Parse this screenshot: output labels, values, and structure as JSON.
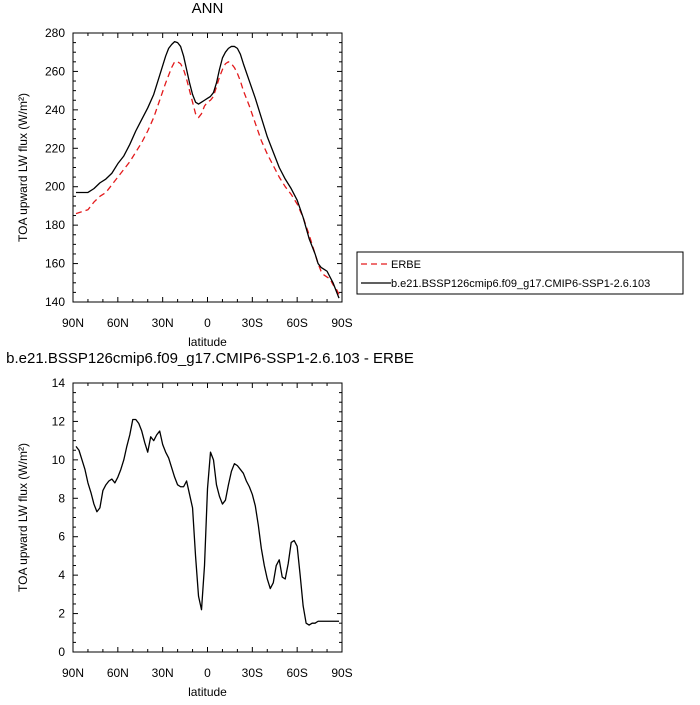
{
  "chart_data": [
    {
      "type": "line",
      "title": "ANN",
      "xlabel": "latitude",
      "ylabel": "TOA upward LW flux (W/m²)",
      "xlim": [
        90,
        -90
      ],
      "ylim": [
        140,
        280
      ],
      "xticks": [
        90,
        60,
        30,
        0,
        -30,
        -60,
        -90
      ],
      "xtick_labels": [
        "90N",
        "60N",
        "30N",
        "0",
        "30S",
        "60S",
        "90S"
      ],
      "yticks": [
        140,
        160,
        180,
        200,
        220,
        240,
        260,
        280
      ],
      "ytick_labels": [
        "140",
        "160",
        "180",
        "200",
        "220",
        "240",
        "260",
        "280"
      ],
      "legend_position": "right",
      "series": [
        {
          "name": "ERBE",
          "color": "#e31a1c",
          "dash": "dashed",
          "x": [
            88,
            84,
            80,
            76,
            72,
            68,
            64,
            60,
            56,
            52,
            48,
            44,
            40,
            36,
            32,
            28,
            26,
            24,
            22,
            20,
            18,
            16,
            14,
            12,
            10,
            8,
            6,
            4,
            2,
            0,
            -2,
            -4,
            -6,
            -8,
            -10,
            -12,
            -14,
            -16,
            -18,
            -20,
            -22,
            -24,
            -28,
            -32,
            -36,
            -40,
            -44,
            -48,
            -52,
            -56,
            -60,
            -64,
            -68,
            -72,
            -74,
            -76,
            -78,
            -80,
            -82,
            -84,
            -86,
            -88
          ],
          "y": [
            186,
            187,
            188,
            192,
            195,
            197,
            201,
            205,
            209,
            213,
            218,
            223,
            229,
            236,
            245,
            254,
            258,
            262,
            265,
            265,
            264,
            261,
            256,
            250,
            244,
            238,
            236,
            238,
            242,
            244,
            245,
            247,
            252,
            257,
            261,
            264,
            265,
            264,
            262,
            259,
            255,
            250,
            242,
            233,
            224,
            217,
            211,
            205,
            200,
            196,
            191,
            184,
            175,
            165,
            160,
            156,
            154,
            153,
            152,
            149,
            147,
            144
          ]
        },
        {
          "name": "b.e21.BSSP126cmip6.f09_g17.CMIP6-SSP1-2.6.103",
          "color": "#000000",
          "dash": "solid",
          "x": [
            88,
            84,
            80,
            76,
            72,
            68,
            64,
            60,
            56,
            52,
            48,
            44,
            40,
            36,
            32,
            28,
            26,
            24,
            22,
            20,
            18,
            16,
            14,
            12,
            10,
            8,
            6,
            4,
            2,
            0,
            -2,
            -4,
            -6,
            -8,
            -10,
            -12,
            -14,
            -16,
            -18,
            -20,
            -22,
            -24,
            -28,
            -32,
            -36,
            -40,
            -44,
            -48,
            -52,
            -56,
            -60,
            -64,
            -68,
            -72,
            -74,
            -76,
            -78,
            -80,
            -82,
            -84,
            -86,
            -88
          ],
          "y": [
            197,
            197,
            197,
            199,
            202,
            204,
            207,
            212,
            216,
            222,
            229,
            235,
            241,
            248,
            258,
            268,
            272,
            274,
            275.5,
            275,
            273,
            268,
            261,
            254,
            248,
            244,
            243,
            244,
            245,
            246,
            247,
            249,
            254,
            261,
            267,
            270,
            272,
            273,
            273,
            272,
            269,
            264,
            255,
            246,
            236,
            226,
            218,
            210,
            204,
            199,
            193,
            184,
            173,
            165,
            160,
            158,
            157,
            156,
            153,
            150,
            146,
            142
          ]
        }
      ]
    },
    {
      "type": "line",
      "title": "b.e21.BSSP126cmip6.f09_g17.CMIP6-SSP1-2.6.103 - ERBE",
      "xlabel": "latitude",
      "ylabel": "TOA upward LW flux (W/m²)",
      "xlim": [
        90,
        -90
      ],
      "ylim": [
        0,
        14
      ],
      "xticks": [
        90,
        60,
        30,
        0,
        -30,
        -60,
        -90
      ],
      "xtick_labels": [
        "90N",
        "60N",
        "30N",
        "0",
        "30S",
        "60S",
        "90S"
      ],
      "yticks": [
        0,
        2,
        4,
        6,
        8,
        10,
        12,
        14
      ],
      "ytick_labels": [
        "0",
        "2",
        "4",
        "6",
        "8",
        "10",
        "12",
        "14"
      ],
      "series": [
        {
          "color": "#000000",
          "dash": "solid",
          "x": [
            88,
            86,
            84,
            82,
            80,
            78,
            76,
            74,
            72,
            70,
            68,
            66,
            64,
            62,
            60,
            58,
            56,
            54,
            52,
            50,
            48,
            46,
            44,
            42,
            40,
            38,
            36,
            34,
            32,
            30,
            28,
            26,
            24,
            22,
            20,
            18,
            16,
            14,
            12,
            10,
            8,
            6,
            4,
            2,
            0,
            -2,
            -4,
            -6,
            -8,
            -10,
            -12,
            -14,
            -16,
            -18,
            -20,
            -22,
            -24,
            -26,
            -28,
            -30,
            -32,
            -34,
            -36,
            -38,
            -40,
            -42,
            -44,
            -46,
            -48,
            -50,
            -52,
            -54,
            -56,
            -58,
            -60,
            -62,
            -64,
            -66,
            -68,
            -70,
            -72,
            -74,
            -76,
            -78,
            -80,
            -82,
            -84,
            -86,
            -88
          ],
          "y": [
            10.7,
            10.5,
            10,
            9.5,
            8.8,
            8.3,
            7.7,
            7.3,
            7.5,
            8.4,
            8.7,
            8.9,
            9,
            8.8,
            9.1,
            9.5,
            10,
            10.7,
            11.3,
            12.1,
            12.1,
            11.9,
            11.5,
            10.9,
            10.4,
            11.2,
            11,
            11.3,
            11.5,
            10.8,
            10.4,
            10.1,
            9.6,
            9.1,
            8.7,
            8.6,
            8.6,
            8.9,
            8.2,
            7.5,
            5,
            2.9,
            2.2,
            4.5,
            8.5,
            10.4,
            10,
            8.7,
            8.1,
            7.7,
            7.9,
            8.7,
            9.4,
            9.8,
            9.7,
            9.5,
            9.3,
            8.9,
            8.6,
            8.2,
            7.6,
            6.6,
            5.4,
            4.5,
            3.8,
            3.3,
            3.6,
            4.5,
            4.8,
            3.9,
            3.8,
            4.6,
            5.7,
            5.8,
            5.5,
            4,
            2.4,
            1.5,
            1.4,
            1.5,
            1.5,
            1.6,
            1.6,
            1.6,
            1.6,
            1.6,
            1.6,
            1.6,
            1.6
          ],
          "x_clip": [
            88,
            -88
          ]
        }
      ]
    }
  ]
}
